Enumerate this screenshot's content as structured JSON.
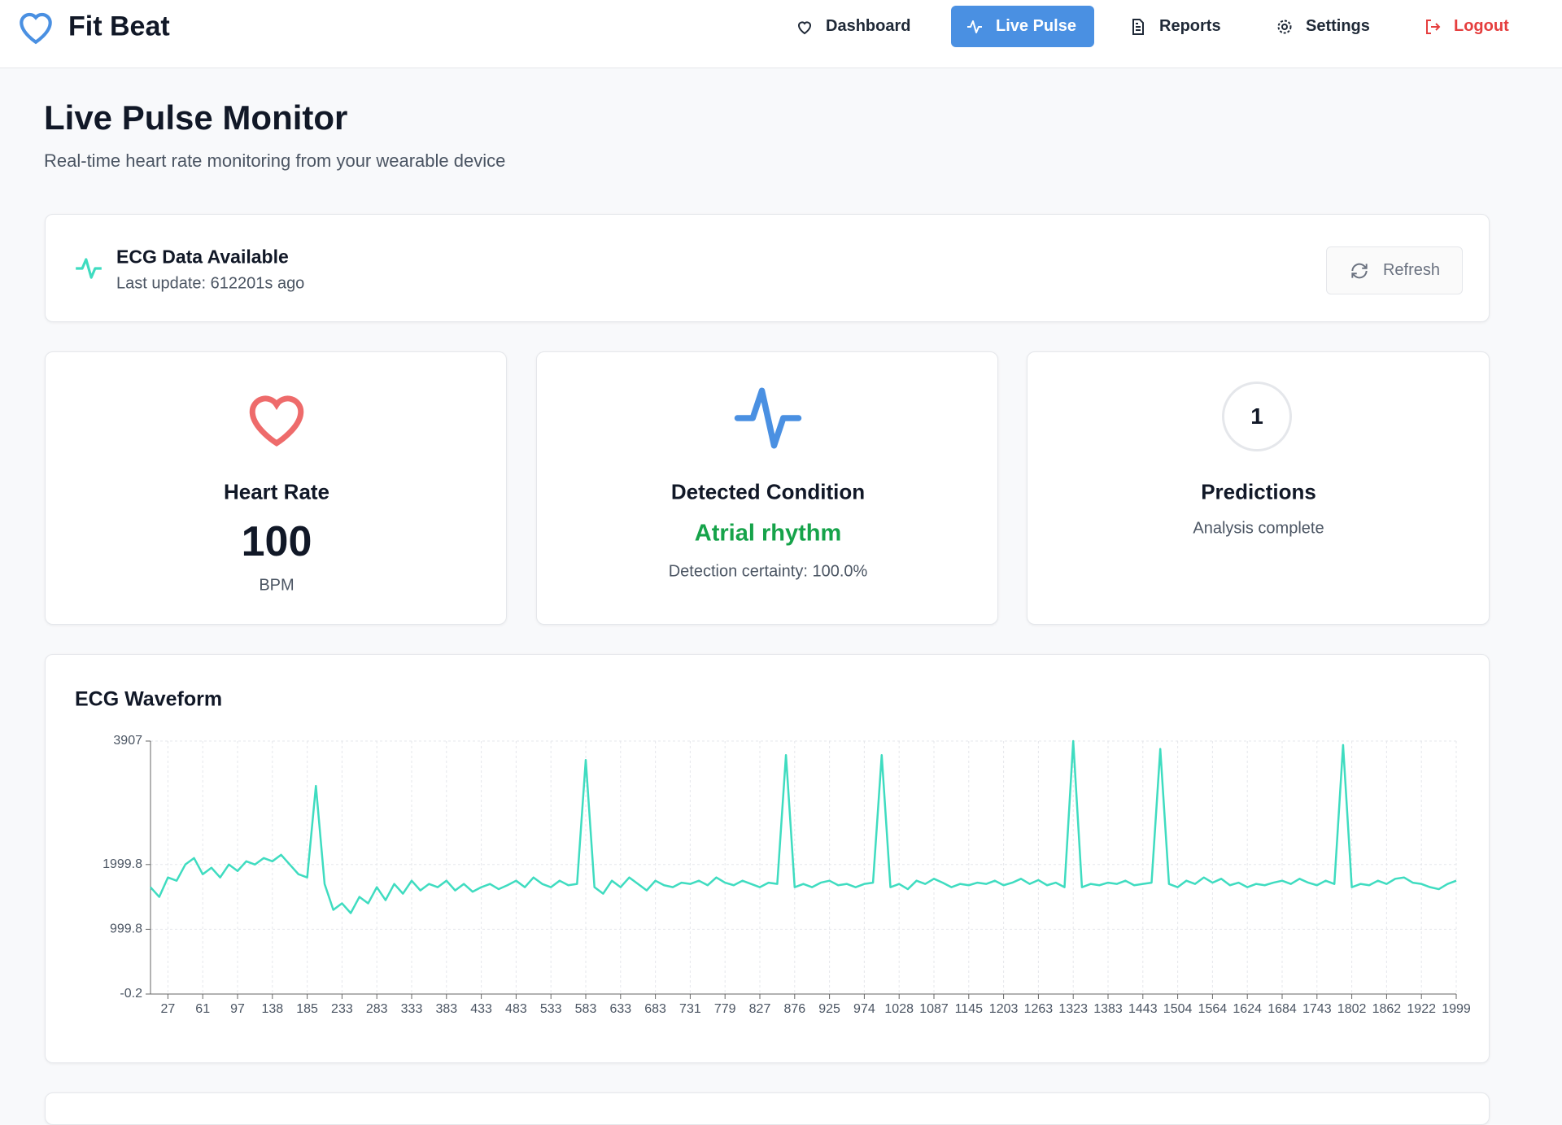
{
  "nav": {
    "brand": "Fit Beat",
    "items": [
      "Dashboard",
      "Live Pulse",
      "Reports",
      "Settings",
      "Logout"
    ]
  },
  "header": {
    "title": "Live Pulse Monitor",
    "subtitle": "Real-time heart rate monitoring from your wearable device"
  },
  "status": {
    "title": "ECG Data Available",
    "detail": "Last update: 612201s ago",
    "button": "Refresh"
  },
  "stats": [
    {
      "label": "Heart Rate",
      "value": 100,
      "unit": "BPM"
    },
    {
      "label": "Detected Condition",
      "value": "Atrial rhythm",
      "detail": "Detection certainty: 100.0%"
    },
    {
      "label": "Predictions",
      "value": 1,
      "detail": "Analysis complete"
    }
  ],
  "chart_data": {
    "type": "line",
    "title": "ECG Waveform",
    "color": "#3fdcc0",
    "grid": true,
    "categories": [
      null,
      null,
      27,
      null,
      null,
      null,
      61,
      null,
      null,
      null,
      97,
      null,
      null,
      null,
      138,
      null,
      null,
      null,
      185,
      null,
      null,
      null,
      233,
      null,
      null,
      null,
      283,
      null,
      null,
      null,
      333,
      null,
      null,
      null,
      383,
      null,
      null,
      null,
      433,
      null,
      null,
      null,
      483,
      null,
      null,
      null,
      533,
      null,
      null,
      null,
      583,
      null,
      null,
      null,
      633,
      null,
      null,
      null,
      683,
      null,
      null,
      null,
      731,
      null,
      null,
      null,
      779,
      null,
      null,
      null,
      827,
      null,
      null,
      null,
      876,
      null,
      null,
      null,
      925,
      null,
      null,
      null,
      974,
      null,
      null,
      null,
      1028,
      null,
      null,
      null,
      1087,
      null,
      null,
      null,
      1145,
      null,
      null,
      null,
      1203,
      null,
      null,
      null,
      1263,
      null,
      null,
      null,
      1323,
      null,
      null,
      null,
      1383,
      null,
      null,
      null,
      1443,
      null,
      null,
      null,
      1504,
      null,
      null,
      null,
      1564,
      null,
      null,
      null,
      1624,
      null,
      null,
      null,
      1684,
      null,
      null,
      null,
      1743,
      null,
      null,
      null,
      1802,
      null,
      null,
      null,
      1862,
      null,
      null,
      null,
      1922,
      null,
      null,
      null,
      1999
    ],
    "values": [
      1650,
      1500,
      1800,
      1750,
      2000,
      2100,
      1850,
      1950,
      1800,
      2000,
      1900,
      2050,
      2000,
      2100,
      2050,
      2150,
      2000,
      1850,
      1800,
      3215,
      1700,
      1300,
      1400,
      1250,
      1500,
      1400,
      1650,
      1450,
      1700,
      1550,
      1750,
      1600,
      1700,
      1650,
      1750,
      1600,
      1700,
      1580,
      1650,
      1700,
      1620,
      1680,
      1750,
      1650,
      1800,
      1700,
      1650,
      1750,
      1680,
      1700,
      3615,
      1650,
      1550,
      1750,
      1650,
      1800,
      1700,
      1600,
      1750,
      1680,
      1650,
      1720,
      1700,
      1750,
      1680,
      1800,
      1720,
      1680,
      1750,
      1700,
      1650,
      1720,
      1700,
      3690,
      1650,
      1700,
      1650,
      1720,
      1750,
      1680,
      1700,
      1650,
      1700,
      1720,
      3690,
      1650,
      1700,
      1620,
      1750,
      1700,
      1780,
      1720,
      1650,
      1700,
      1680,
      1720,
      1700,
      1750,
      1680,
      1720,
      1780,
      1700,
      1760,
      1680,
      1720,
      1650,
      3907,
      1650,
      1700,
      1680,
      1720,
      1700,
      1750,
      1680,
      1700,
      1720,
      3785,
      1700,
      1650,
      1750,
      1700,
      1800,
      1720,
      1780,
      1680,
      1720,
      1650,
      1700,
      1680,
      1720,
      1750,
      1700,
      1780,
      1720,
      1680,
      1750,
      1700,
      3846,
      1650,
      1700,
      1680,
      1750,
      1700,
      1780,
      1800,
      1720,
      1700,
      1650,
      1620,
      1700,
      1750
    ],
    "ylim": [
      -0.2,
      3907
    ],
    "yticks": [
      -0.2,
      999.8,
      1999.8,
      3907
    ]
  }
}
